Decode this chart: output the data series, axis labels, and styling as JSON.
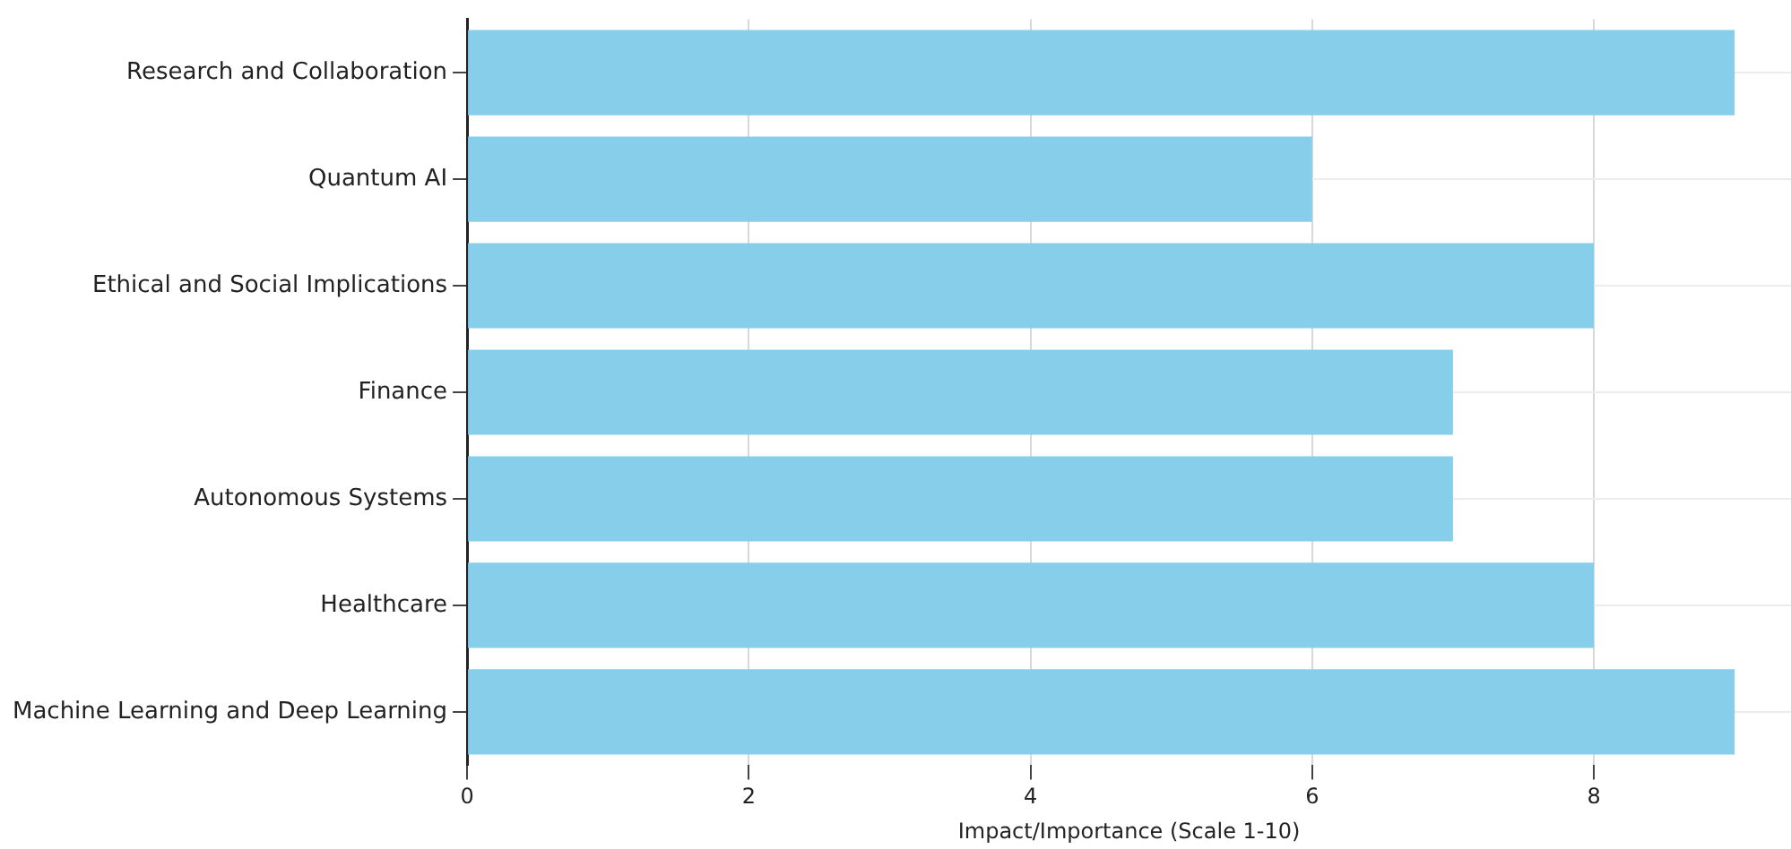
{
  "chart_data": {
    "type": "bar",
    "orientation": "horizontal",
    "xlabel": "Impact/Importance (Scale 1-10)",
    "categories": [
      "Research and Collaboration",
      "Quantum AI",
      "Ethical and Social Implications",
      "Finance",
      "Autonomous Systems",
      "Healthcare",
      "Machine Learning and Deep Learning"
    ],
    "values": [
      9,
      6,
      8,
      7,
      7,
      8,
      9
    ],
    "color": "#87ceeb",
    "xlim": [
      0,
      9.4
    ],
    "xticks": [
      0,
      2,
      4,
      6,
      8
    ],
    "grid": true
  }
}
